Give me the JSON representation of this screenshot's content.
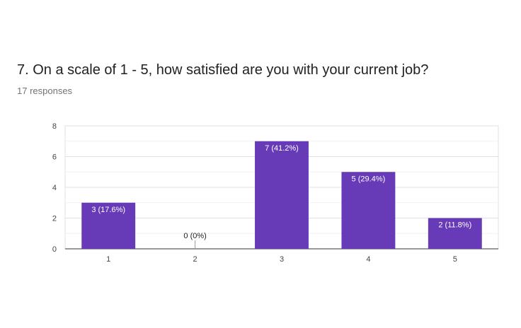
{
  "question": {
    "title": "7. On a scale of 1 - 5, how satisfied are you with your current job?",
    "responses": "17 responses"
  },
  "chart_data": {
    "type": "bar",
    "categories": [
      "1",
      "2",
      "3",
      "4",
      "5"
    ],
    "values": [
      3,
      0,
      7,
      5,
      2
    ],
    "data_labels": [
      "3 (17.6%)",
      "0 (0%)",
      "7 (41.2%)",
      "5 (29.4%)",
      "2 (11.8%)"
    ],
    "ylim": [
      0,
      8
    ],
    "yticks": [
      0,
      2,
      4,
      6,
      8
    ],
    "grid": true,
    "legend": "none",
    "bar_color": "#673ab7",
    "xlabel": "",
    "ylabel": ""
  }
}
